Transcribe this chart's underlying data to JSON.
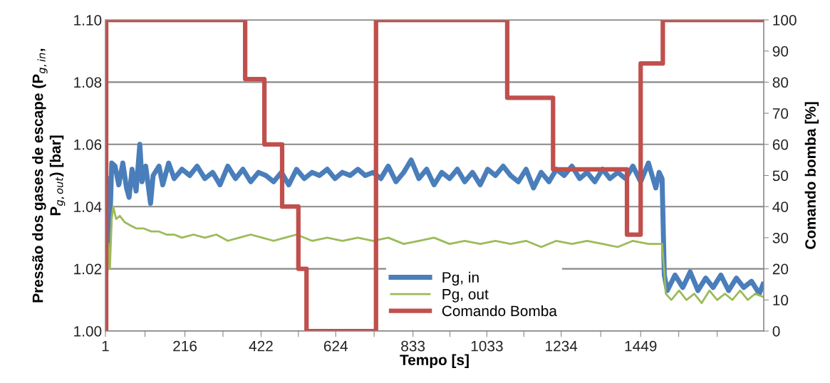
{
  "chart_data": {
    "type": "line",
    "xlabel": "Tempo [s]",
    "ylabel": "Pressão dos gases de escape (P$_{g,in}$, P$_{g,out}$) [bar]",
    "y2label": "Comando bomba [%]",
    "xlim": [
      1,
      1782
    ],
    "xticks": [
      1,
      {
        "value": 108,
        "label": null
      },
      216,
      {
        "value": 319,
        "label": null
      },
      422,
      {
        "value": 523,
        "label": null
      },
      624,
      {
        "value": 728,
        "label": null
      },
      833,
      {
        "value": 933,
        "label": null
      },
      1033,
      {
        "value": 1133,
        "label": null
      },
      1234,
      {
        "value": 1341,
        "label": null
      },
      1449,
      {
        "value": 1552,
        "label": null
      },
      {
        "value": 1656,
        "label": null
      }
    ],
    "ylim": [
      1.0,
      1.1
    ],
    "yticks": [
      {
        "value": 1.0,
        "label": "1.00"
      },
      {
        "value": 1.02,
        "label": "1.02"
      },
      {
        "value": 1.04,
        "label": "1.04"
      },
      {
        "value": 1.06,
        "label": "1.06"
      },
      {
        "value": 1.08,
        "label": "1.08"
      },
      {
        "value": 1.1,
        "label": "1.10"
      }
    ],
    "y2lim": [
      0,
      100
    ],
    "y2ticks": [
      0,
      10,
      20,
      30,
      40,
      50,
      60,
      70,
      80,
      90,
      100
    ],
    "grid": "y",
    "legend": "bottom",
    "series": [
      {
        "name": "Pg, in",
        "color": "#4a7ebb",
        "x": [
          1,
          4,
          7,
          10,
          13,
          18,
          27,
          37,
          48,
          58,
          65,
          73,
          84,
          94,
          100,
          110,
          123,
          130,
          146,
          156,
          172,
          187,
          208,
          229,
          249,
          270,
          291,
          311,
          332,
          353,
          373,
          394,
          415,
          435,
          456,
          477,
          497,
          518,
          539,
          560,
          580,
          601,
          622,
          642,
          663,
          684,
          704,
          725,
          746,
          766,
          787,
          808,
          828,
          849,
          870,
          890,
          911,
          932,
          953,
          973,
          994,
          1015,
          1035,
          1056,
          1077,
          1097,
          1118,
          1139,
          1159,
          1180,
          1201,
          1221,
          1242,
          1263,
          1284,
          1304,
          1325,
          1346,
          1366,
          1387,
          1408,
          1428,
          1449,
          1470,
          1490,
          1499,
          1507,
          1513,
          1521,
          1542,
          1563,
          1583,
          1604,
          1625,
          1645,
          1666,
          1687,
          1708,
          1728,
          1749,
          1770,
          1780
        ],
        "values": [
          1.051,
          1.03,
          1.027,
          1.049,
          1.034,
          1.054,
          1.053,
          1.047,
          1.054,
          1.046,
          1.043,
          1.052,
          1.045,
          1.06,
          1.048,
          1.053,
          1.041,
          1.05,
          1.053,
          1.047,
          1.054,
          1.049,
          1.052,
          1.05,
          1.053,
          1.049,
          1.051,
          1.047,
          1.053,
          1.049,
          1.052,
          1.048,
          1.051,
          1.05,
          1.048,
          1.051,
          1.047,
          1.052,
          1.049,
          1.051,
          1.05,
          1.052,
          1.049,
          1.051,
          1.05,
          1.052,
          1.05,
          1.051,
          1.049,
          1.053,
          1.048,
          1.051,
          1.055,
          1.049,
          1.052,
          1.047,
          1.051,
          1.049,
          1.052,
          1.048,
          1.051,
          1.047,
          1.052,
          1.05,
          1.053,
          1.05,
          1.048,
          1.052,
          1.046,
          1.051,
          1.048,
          1.052,
          1.05,
          1.053,
          1.049,
          1.051,
          1.048,
          1.052,
          1.049,
          1.051,
          1.049,
          1.053,
          1.048,
          1.054,
          1.046,
          1.051,
          1.049,
          1.018,
          1.013,
          1.018,
          1.014,
          1.019,
          1.013,
          1.017,
          1.014,
          1.018,
          1.013,
          1.017,
          1.014,
          1.016,
          1.012,
          1.015
        ]
      },
      {
        "name": "Pg, out",
        "color": "#9bbb59",
        "x": [
          1,
          6,
          9,
          13,
          18,
          22,
          30,
          40,
          53,
          68,
          84,
          104,
          125,
          146,
          166,
          187,
          208,
          239,
          270,
          301,
          332,
          363,
          394,
          425,
          456,
          487,
          518,
          560,
          601,
          642,
          684,
          725,
          766,
          808,
          849,
          890,
          932,
          973,
          1015,
          1056,
          1097,
          1139,
          1180,
          1221,
          1263,
          1304,
          1346,
          1387,
          1428,
          1470,
          1507,
          1513,
          1517,
          1532,
          1553,
          1573,
          1594,
          1614,
          1635,
          1656,
          1677,
          1697,
          1718,
          1739,
          1759,
          1780
        ],
        "values": [
          1.01,
          1.017,
          1.028,
          1.02,
          1.036,
          1.04,
          1.036,
          1.037,
          1.035,
          1.034,
          1.033,
          1.033,
          1.032,
          1.032,
          1.031,
          1.031,
          1.03,
          1.031,
          1.03,
          1.031,
          1.029,
          1.03,
          1.031,
          1.03,
          1.029,
          1.03,
          1.031,
          1.029,
          1.03,
          1.029,
          1.03,
          1.029,
          1.03,
          1.028,
          1.029,
          1.03,
          1.028,
          1.029,
          1.028,
          1.029,
          1.028,
          1.029,
          1.027,
          1.029,
          1.028,
          1.029,
          1.028,
          1.027,
          1.029,
          1.028,
          1.028,
          1.019,
          1.012,
          1.01,
          1.013,
          1.01,
          1.012,
          1.009,
          1.013,
          1.01,
          1.012,
          1.01,
          1.013,
          1.01,
          1.012,
          1.011
        ]
      },
      {
        "name": "Comando Bomba",
        "color": "#c0504d",
        "type": "step",
        "axis": "y2",
        "x": [
          1,
          3,
          379,
          431,
          479,
          523,
          545,
          733,
          1088,
          1212,
          1412,
          1449,
          1509,
          1782
        ],
        "values": [
          0,
          100,
          81,
          60,
          40,
          20,
          0,
          100,
          75,
          52,
          31,
          86,
          100,
          100
        ]
      }
    ]
  }
}
